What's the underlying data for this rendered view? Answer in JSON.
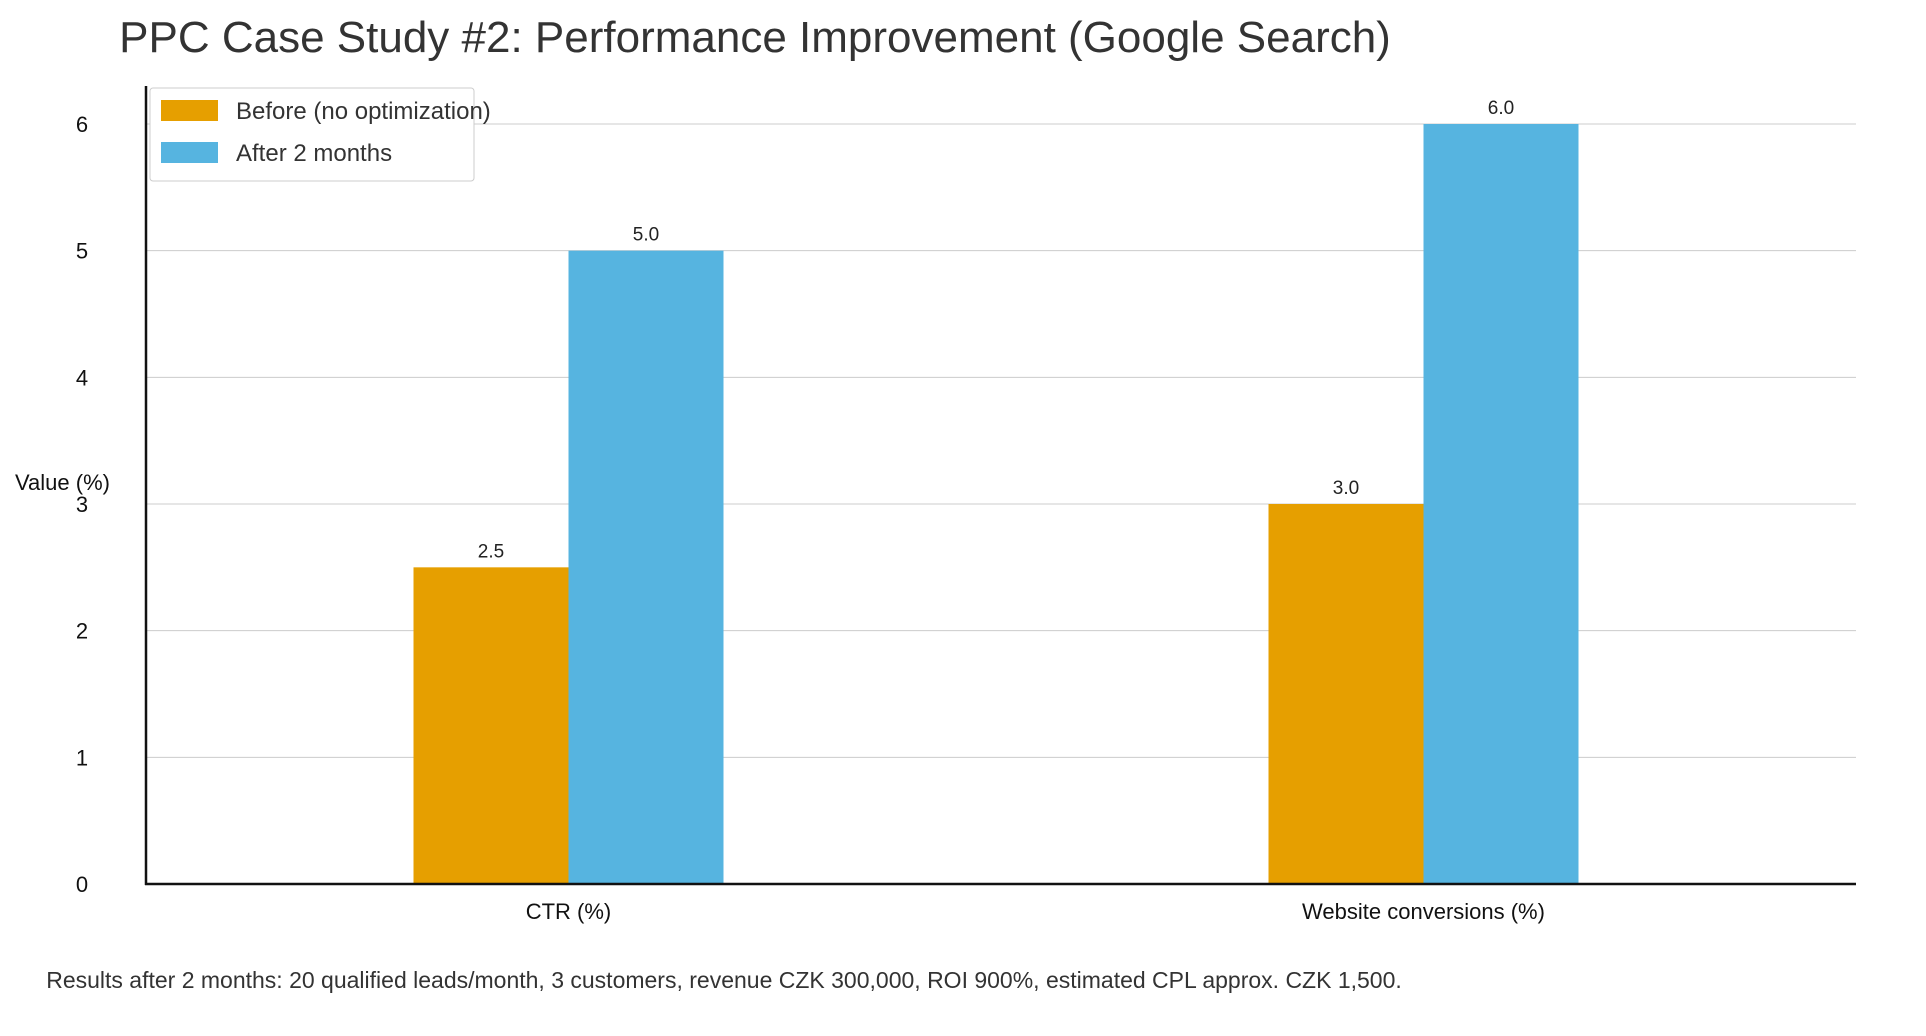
{
  "chart_data": {
    "type": "bar",
    "title": "PPC Case Study #2: Performance Improvement (Google Search)",
    "xlabel": "",
    "ylabel": "Value (%)",
    "categories": [
      "CTR (%)",
      "Website conversions (%)"
    ],
    "series": [
      {
        "name": "Before (no optimization)",
        "values": [
          2.5,
          3.0
        ],
        "color": "#E69F00"
      },
      {
        "name": "After 2 months",
        "values": [
          5.0,
          6.0
        ],
        "color": "#56B4E0"
      }
    ],
    "ylim": [
      0,
      6.3
    ],
    "yticks": [
      0,
      1,
      2,
      3,
      4,
      5,
      6
    ],
    "data_labels": [
      [
        "2.5",
        "3.0"
      ],
      [
        "5.0",
        "6.0"
      ]
    ],
    "grid": "horizontal",
    "legend_position": "top-left",
    "footnote": "Results after 2 months: 20 qualified leads/month, 3 customers, revenue CZK 300,000, ROI 900%, estimated CPL approx. CZK 1,500."
  }
}
